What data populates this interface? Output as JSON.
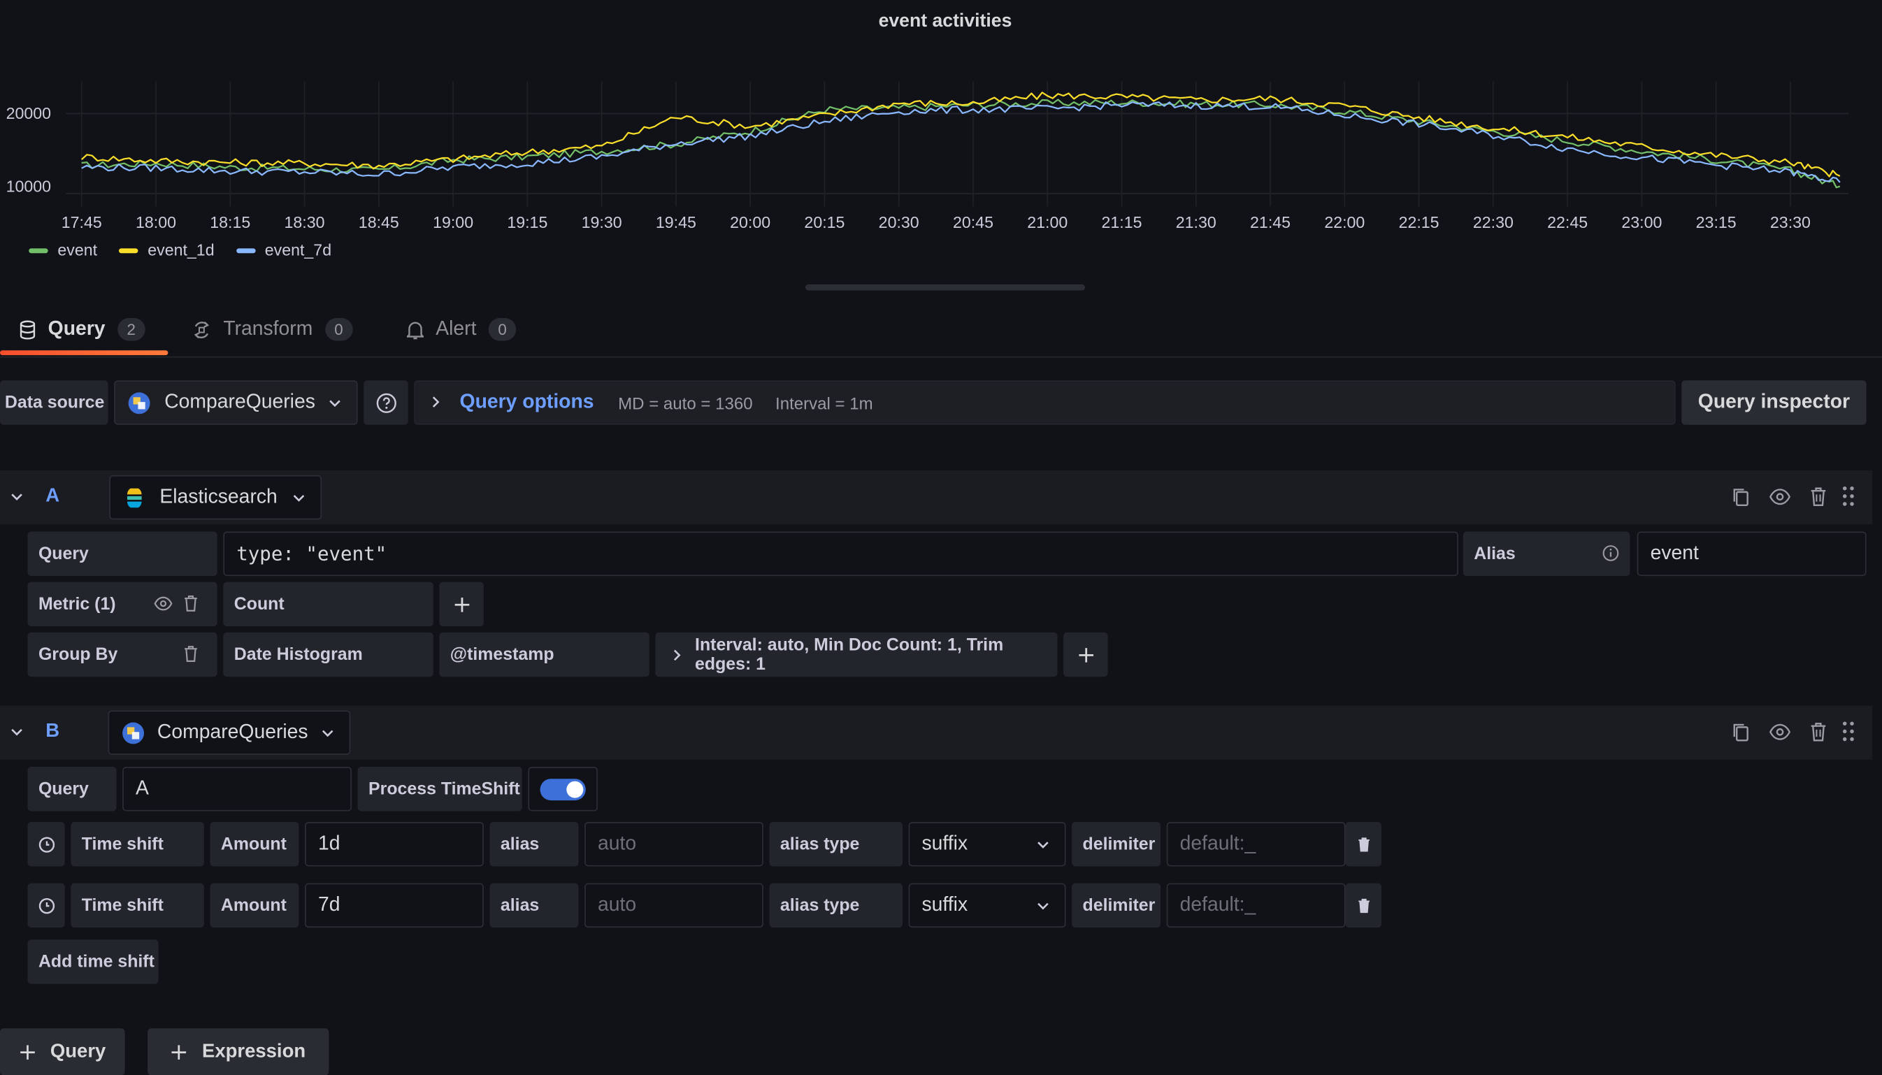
{
  "panel": {
    "title": "event activities",
    "y_ticks": [
      "20000",
      "10000"
    ],
    "x_ticks": [
      "17:45",
      "18:00",
      "18:15",
      "18:30",
      "18:45",
      "19:00",
      "19:15",
      "19:30",
      "19:45",
      "20:00",
      "20:15",
      "20:30",
      "20:45",
      "21:00",
      "21:15",
      "21:30",
      "21:45",
      "22:00",
      "22:15",
      "22:30",
      "22:45",
      "23:00",
      "23:15",
      "23:30"
    ],
    "legend": [
      {
        "name": "event",
        "color": "#73bf69"
      },
      {
        "name": "event_1d",
        "color": "#fade2a"
      },
      {
        "name": "event_7d",
        "color": "#8ab8ff"
      }
    ]
  },
  "chart_data": {
    "type": "line",
    "title": "event activities",
    "xlabel": "",
    "ylabel": "",
    "x": [
      "17:45",
      "18:00",
      "18:15",
      "18:30",
      "18:45",
      "19:00",
      "19:15",
      "19:30",
      "19:45",
      "20:00",
      "20:15",
      "20:30",
      "20:45",
      "21:00",
      "21:15",
      "21:30",
      "21:45",
      "22:00",
      "22:15",
      "22:30",
      "22:45",
      "23:00",
      "23:15",
      "23:30",
      "23:40"
    ],
    "ylim": [
      9000,
      24000
    ],
    "grid": true,
    "legend_position": "bottom-left",
    "series": [
      {
        "name": "event",
        "color": "#73bf69",
        "values": [
          13500,
          13800,
          13300,
          13100,
          12900,
          14200,
          14600,
          15300,
          16200,
          17800,
          20500,
          20700,
          21100,
          21300,
          21400,
          21200,
          21100,
          20300,
          19000,
          17800,
          16600,
          15300,
          14200,
          12900,
          10900
        ]
      },
      {
        "name": "event_1d",
        "color": "#fade2a",
        "values": [
          14600,
          14100,
          13900,
          13800,
          13500,
          14300,
          15200,
          15900,
          19600,
          18400,
          19800,
          21300,
          21300,
          22300,
          22100,
          21700,
          21900,
          21000,
          19500,
          18200,
          17100,
          15900,
          14800,
          13900,
          12200
        ]
      },
      {
        "name": "event_7d",
        "color": "#8ab8ff",
        "values": [
          13300,
          13200,
          12800,
          12700,
          12400,
          13300,
          13800,
          14600,
          16300,
          17200,
          19000,
          20300,
          20500,
          20600,
          21100,
          21000,
          20900,
          19800,
          18700,
          17300,
          15600,
          14500,
          13600,
          12700,
          11400
        ]
      }
    ]
  },
  "tabs": [
    {
      "label": "Query",
      "count": "2"
    },
    {
      "label": "Transform",
      "count": "0"
    },
    {
      "label": "Alert",
      "count": "0"
    }
  ],
  "toolbar": {
    "data_source_label": "Data source",
    "data_source_value": "CompareQueries",
    "query_options_label": "Query options",
    "md_info": "MD = auto = 1360",
    "interval_info": "Interval = 1m",
    "inspector_label": "Query inspector"
  },
  "query_a": {
    "letter": "A",
    "datasource": "Elasticsearch",
    "query_label": "Query",
    "query_value": "type: \"event\"",
    "alias_label": "Alias",
    "alias_value": "event",
    "metric_label": "Metric (1)",
    "metric_value": "Count",
    "groupby_label": "Group By",
    "groupby_value": "Date Histogram",
    "groupby_field": "@timestamp",
    "groupby_settings": "Interval: auto, Min Doc Count: 1, Trim edges: 1"
  },
  "query_b": {
    "letter": "B",
    "datasource": "CompareQueries",
    "query_label": "Query",
    "query_value": "A",
    "process_label": "Process TimeShift",
    "process_enabled": true,
    "shifts": [
      {
        "label": "Time shift",
        "amount_label": "Amount",
        "amount": "1d",
        "alias_label": "alias",
        "alias_placeholder": "auto",
        "alias_type_label": "alias type",
        "alias_type": "suffix",
        "delimiter_label": "delimiter",
        "delimiter_placeholder": "default:_"
      },
      {
        "label": "Time shift",
        "amount_label": "Amount",
        "amount": "7d",
        "alias_label": "alias",
        "alias_placeholder": "auto",
        "alias_type_label": "alias type",
        "alias_type": "suffix",
        "delimiter_label": "delimiter",
        "delimiter_placeholder": "default:_"
      }
    ],
    "add_shift_label": "Add time shift"
  },
  "footer": {
    "add_query_label": "Query",
    "add_expression_label": "Expression"
  },
  "colors": {
    "accent": "#6e9fff",
    "tab_underline": "#f55f3e",
    "background": "#111217"
  }
}
